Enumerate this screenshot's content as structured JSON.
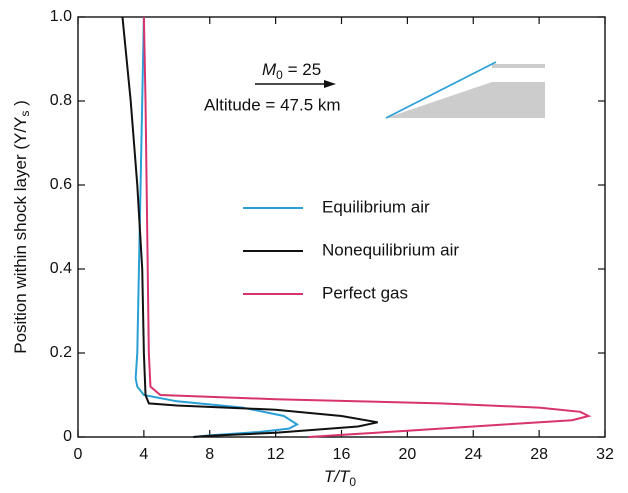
{
  "chart_data": {
    "type": "line",
    "xlabel": {
      "main": "T/T",
      "sub": "0"
    },
    "ylabel": {
      "main": "Position within shock layer (Y/Y",
      "sub": "s",
      "end": " )"
    },
    "annotations": {
      "mach": {
        "main": "M",
        "sub": "0",
        "rest": " = 25"
      },
      "altitude": "Altitude = 47.5 km"
    },
    "xlim": [
      0,
      32
    ],
    "xticks": [
      0,
      4,
      8,
      12,
      16,
      20,
      24,
      28,
      32
    ],
    "ylim": [
      0,
      1
    ],
    "yticks": [
      0,
      0.2,
      0.4,
      0.6,
      0.8,
      {
        "value": 1,
        "label": "1.0"
      }
    ],
    "series": [
      {
        "name": "Equilibrium air",
        "color": "#2a9fd6",
        "x": [
          4.0,
          3.9,
          3.8,
          3.7,
          3.6,
          3.5,
          3.6,
          4.0,
          6.0,
          10.0,
          12.5,
          13.3,
          12.8,
          11.0,
          8.0,
          7.0
        ],
        "values": [
          1,
          0.8,
          0.6,
          0.4,
          0.2,
          0.14,
          0.12,
          0.1,
          0.085,
          0.07,
          0.05,
          0.03,
          0.02,
          0.012,
          0.004,
          0
        ]
      },
      {
        "name": "Nonequilibrium air",
        "color": "#111111",
        "x": [
          2.7,
          3.2,
          3.6,
          3.9,
          4.0,
          4.1,
          4.3,
          6.0,
          12.0,
          16.0,
          18.2,
          17.0,
          12.0,
          8.0,
          7.0
        ],
        "values": [
          1,
          0.8,
          0.6,
          0.4,
          0.2,
          0.1,
          0.08,
          0.075,
          0.065,
          0.05,
          0.035,
          0.025,
          0.01,
          0.003,
          0
        ]
      },
      {
        "name": "Perfect gas",
        "color": "#d8336a",
        "x": [
          4.0,
          4.1,
          4.2,
          4.3,
          4.4,
          5.0,
          12.0,
          22.0,
          28.0,
          30.5,
          31.0,
          30.0,
          26.0,
          20.0,
          16.0,
          14.0
        ],
        "values": [
          1,
          0.8,
          0.5,
          0.2,
          0.12,
          0.1,
          0.09,
          0.08,
          0.07,
          0.06,
          0.05,
          0.04,
          0.03,
          0.015,
          0.005,
          0
        ]
      }
    ]
  }
}
